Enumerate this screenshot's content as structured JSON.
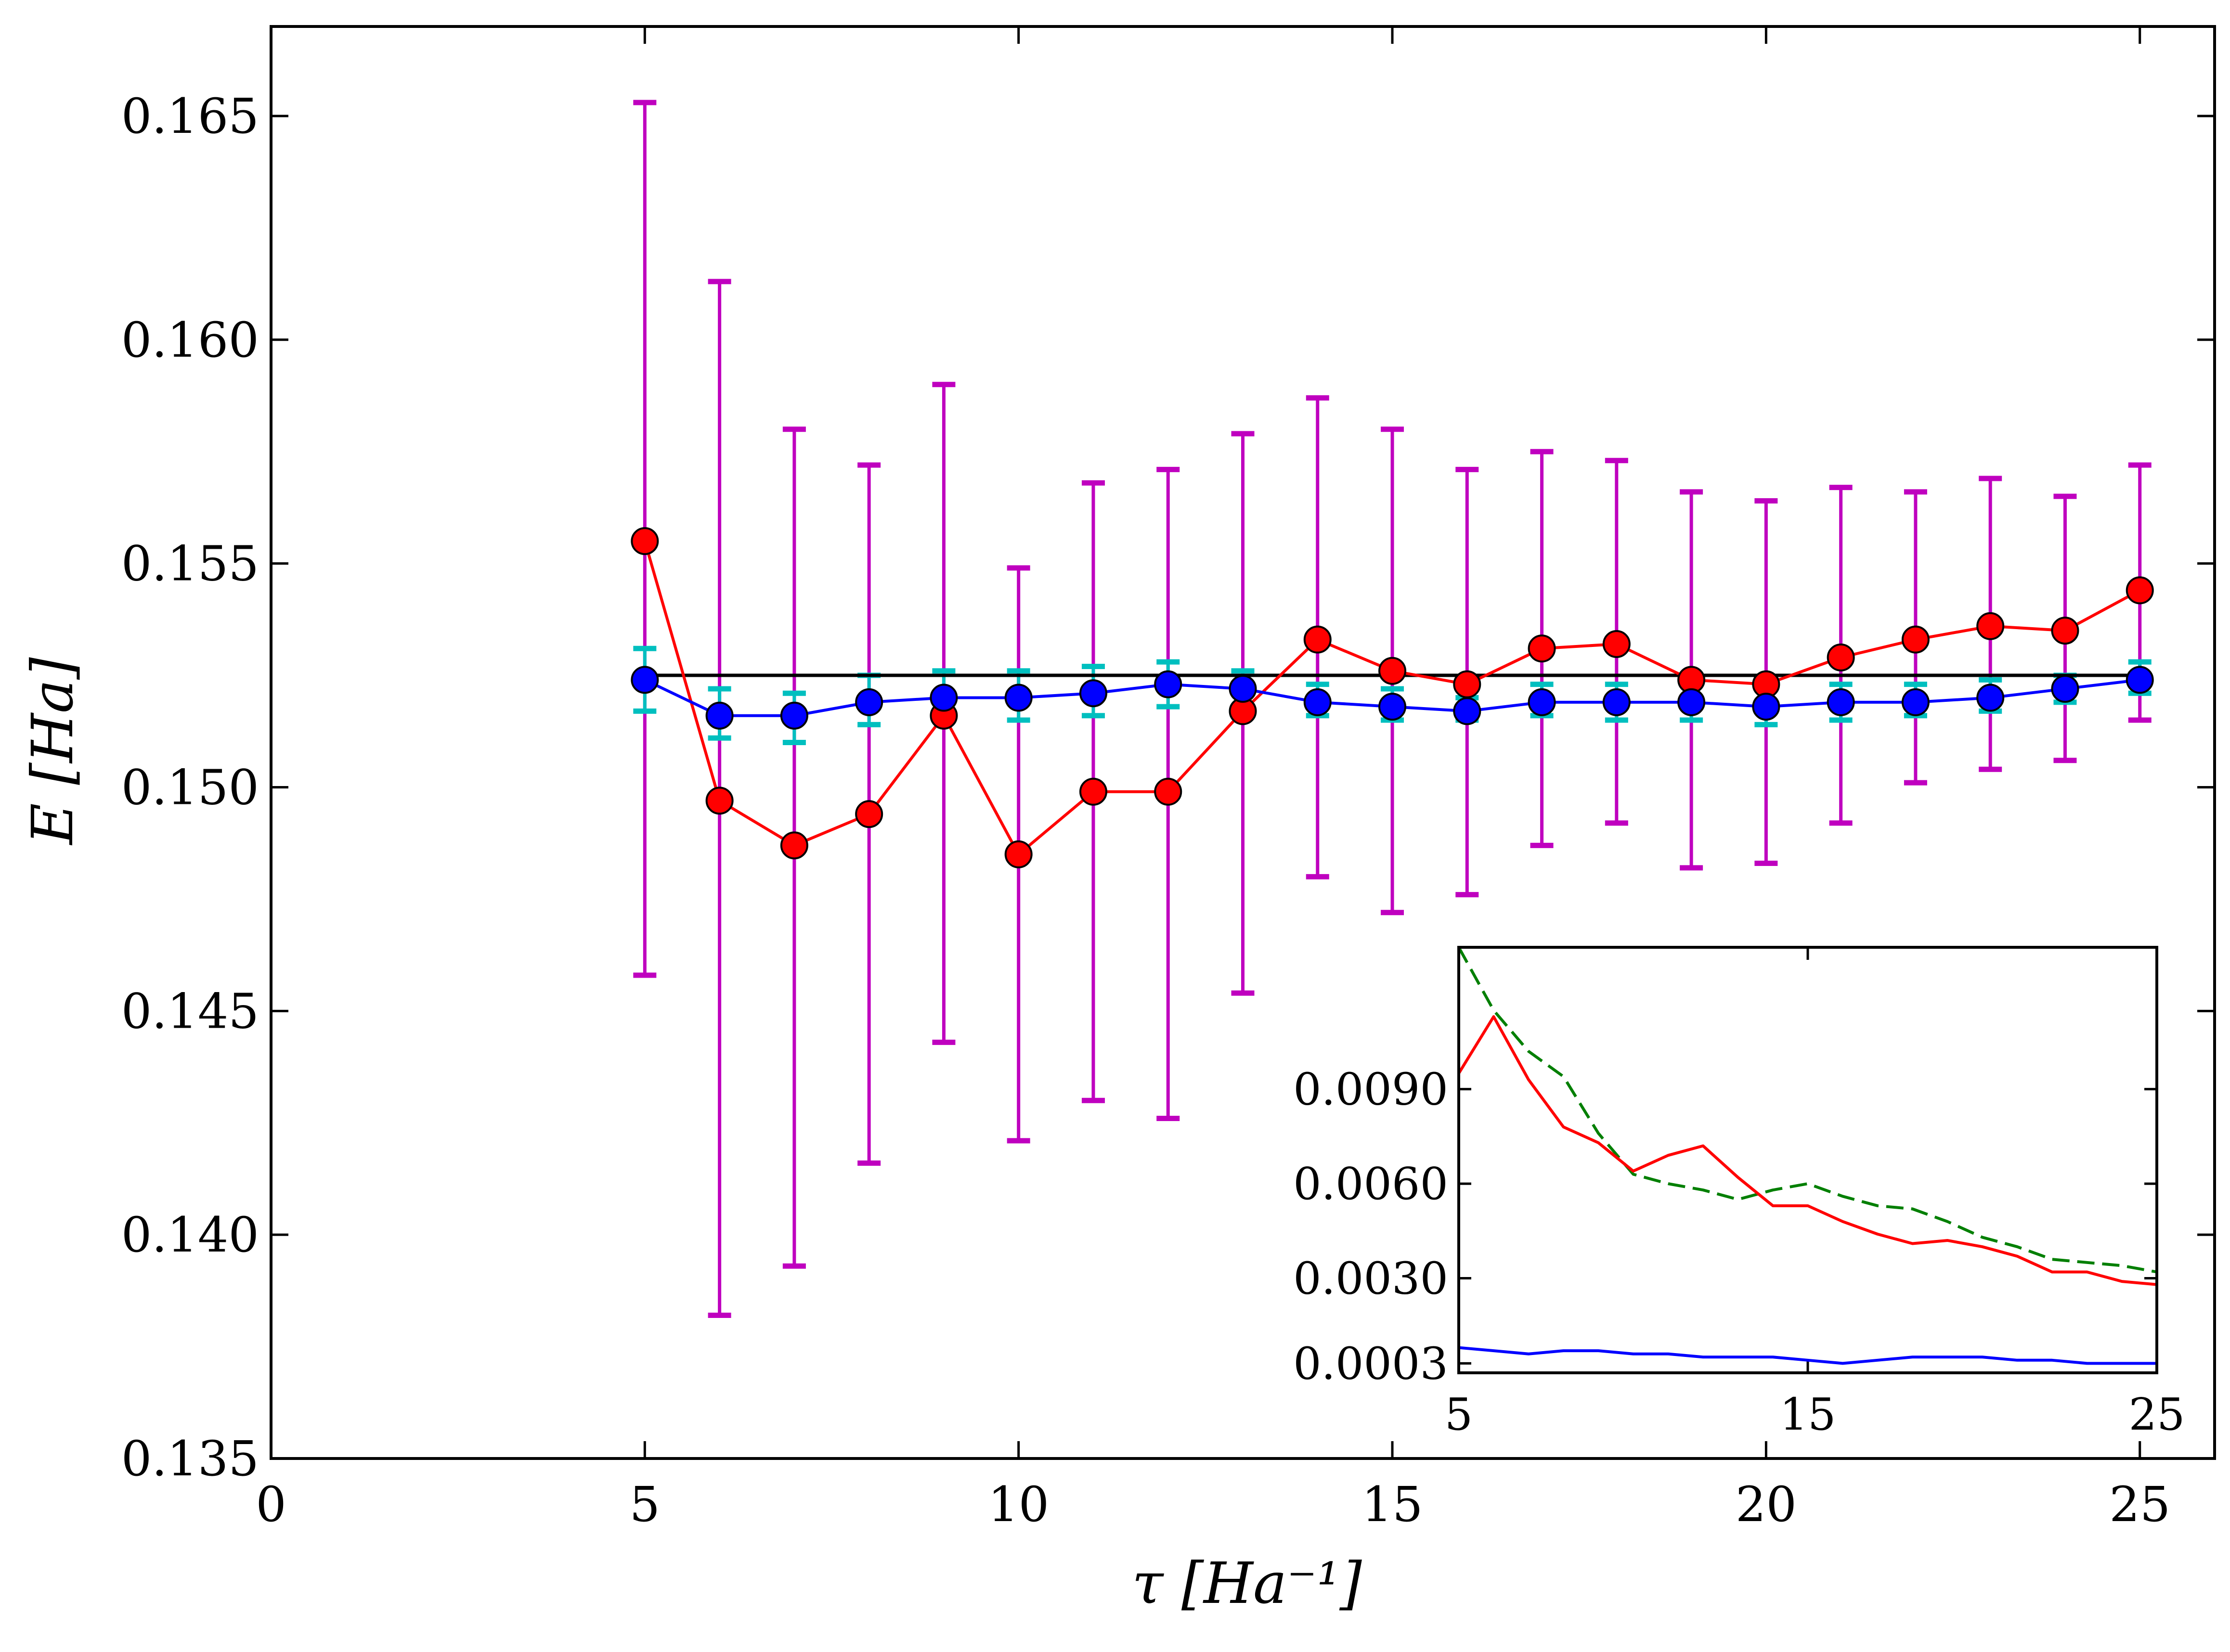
{
  "chart_data": [
    {
      "type": "line",
      "title": "",
      "xlabel": "τ [Ha⁻¹]",
      "ylabel": "E [Ha]",
      "xlim": [
        0,
        26
      ],
      "ylim": [
        0.135,
        0.167
      ],
      "x_ticks": [
        0,
        5,
        10,
        15,
        20,
        25
      ],
      "y_ticks": [
        0.135,
        0.14,
        0.145,
        0.15,
        0.155,
        0.16,
        0.165
      ],
      "x_tick_labels": [
        "0",
        "5",
        "10",
        "15",
        "20",
        "25"
      ],
      "y_tick_labels": [
        "0.135",
        "0.140",
        "0.145",
        "0.150",
        "0.155",
        "0.160",
        "0.165"
      ],
      "x": [
        5,
        6,
        7,
        8,
        9,
        10,
        11,
        12,
        13,
        14,
        15,
        16,
        17,
        18,
        19,
        20,
        21,
        22,
        23,
        24,
        25
      ],
      "reference": {
        "name": "reference",
        "y": 0.1525,
        "x_range": [
          5,
          25
        ],
        "color": "#000000"
      },
      "series": [
        {
          "name": "red",
          "color": "#ff0000",
          "errorbar_color": "#bf00bf",
          "values": [
            0.1555,
            0.1497,
            0.1487,
            0.1494,
            0.1516,
            0.1485,
            0.1499,
            0.1499,
            0.1517,
            0.1533,
            0.1526,
            0.1523,
            0.1531,
            0.1532,
            0.1524,
            0.1523,
            0.1529,
            0.1533,
            0.1536,
            0.1535,
            0.1544
          ],
          "err_upper": [
            0.1653,
            0.1613,
            0.158,
            0.1572,
            0.159,
            0.1549,
            0.1568,
            0.1571,
            0.1579,
            0.1587,
            0.158,
            0.1571,
            0.1575,
            0.1573,
            0.1566,
            0.1564,
            0.1567,
            0.1566,
            0.1569,
            0.1565,
            0.1572
          ],
          "err_lower": [
            0.1458,
            0.1382,
            0.1393,
            0.1416,
            0.1443,
            0.1421,
            0.143,
            0.1426,
            0.1454,
            0.148,
            0.1472,
            0.1476,
            0.1487,
            0.1492,
            0.1482,
            0.1483,
            0.1492,
            0.1501,
            0.1504,
            0.1506,
            0.1515
          ]
        },
        {
          "name": "blue",
          "color": "#0000ff",
          "errorbar_color": "#00bfbf",
          "values": [
            0.1524,
            0.1516,
            0.1516,
            0.1519,
            0.152,
            0.152,
            0.1521,
            0.1523,
            0.1522,
            0.1519,
            0.1518,
            0.1517,
            0.1519,
            0.1519,
            0.1519,
            0.1518,
            0.1519,
            0.1519,
            0.152,
            0.1522,
            0.1524
          ],
          "err_upper": [
            0.1531,
            0.1522,
            0.1521,
            0.1525,
            0.1526,
            0.1526,
            0.1527,
            0.1528,
            0.1526,
            0.1523,
            0.1522,
            0.152,
            0.1523,
            0.1523,
            0.1523,
            0.1522,
            0.1523,
            0.1523,
            0.1524,
            0.1525,
            0.1528
          ],
          "err_lower": [
            0.1517,
            0.1511,
            0.151,
            0.1514,
            0.1515,
            0.1515,
            0.1516,
            0.1518,
            0.1517,
            0.1516,
            0.1515,
            0.1515,
            0.1516,
            0.1515,
            0.1515,
            0.1514,
            0.1515,
            0.1516,
            0.1517,
            0.1519,
            0.1521
          ]
        }
      ]
    },
    {
      "type": "line",
      "title": "",
      "xlabel": "",
      "ylabel": "",
      "placement": "bottom-right inset",
      "xlim": [
        5,
        25
      ],
      "ylim": [
        0.0,
        0.0135
      ],
      "x_ticks": [
        5,
        15,
        25
      ],
      "y_ticks": [
        0.0003,
        0.003,
        0.006,
        0.009
      ],
      "x_tick_labels": [
        "5",
        "15",
        "25"
      ],
      "y_tick_labels": [
        "0.0003",
        "0.0030",
        "0.0060",
        "0.0090"
      ],
      "x": [
        5,
        6,
        7,
        8,
        9,
        10,
        11,
        12,
        13,
        14,
        15,
        16,
        17,
        18,
        19,
        20,
        21,
        22,
        23,
        24,
        25
      ],
      "series": [
        {
          "name": "green-dashed",
          "color": "#007f00",
          "dashed": true,
          "values": [
            0.0135,
            0.0115,
            0.0102,
            0.0094,
            0.0076,
            0.0063,
            0.006,
            0.0058,
            0.0055,
            0.0058,
            0.006,
            0.0056,
            0.0053,
            0.0052,
            0.0048,
            0.0043,
            0.004,
            0.0036,
            0.0035,
            0.0034,
            0.0032
          ]
        },
        {
          "name": "red",
          "color": "#ff0000",
          "dashed": false,
          "values": [
            0.0095,
            0.0113,
            0.0093,
            0.0078,
            0.0073,
            0.0064,
            0.0069,
            0.0072,
            0.0062,
            0.0053,
            0.0053,
            0.0048,
            0.0044,
            0.0041,
            0.0042,
            0.004,
            0.0037,
            0.0032,
            0.0032,
            0.0029,
            0.0028
          ]
        },
        {
          "name": "blue",
          "color": "#0000ff",
          "dashed": false,
          "values": [
            0.0008,
            0.0007,
            0.0006,
            0.0007,
            0.0007,
            0.0006,
            0.0006,
            0.0005,
            0.0005,
            0.0005,
            0.0004,
            0.0003,
            0.0004,
            0.0005,
            0.0005,
            0.0005,
            0.0004,
            0.0004,
            0.0003,
            0.0003,
            0.0003
          ]
        }
      ]
    }
  ]
}
